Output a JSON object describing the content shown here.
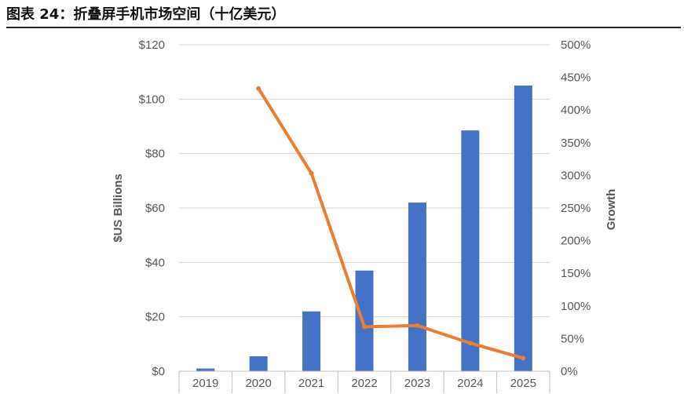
{
  "figure": {
    "title": "图表 24：折叠屏手机市场空间（十亿美元）"
  },
  "chart_data": {
    "type": "bar",
    "categories": [
      "2019",
      "2020",
      "2021",
      "2022",
      "2023",
      "2024",
      "2025"
    ],
    "series": [
      {
        "name": "",
        "type": "bar",
        "axis": "left",
        "values": [
          1,
          5.5,
          22,
          37,
          62,
          88.5,
          105
        ],
        "color": "#4472C4"
      },
      {
        "name": "",
        "type": "line",
        "axis": "right",
        "values": [
          null,
          433,
          303,
          68,
          70,
          43,
          20
        ],
        "color": "#ED7D31"
      }
    ],
    "ylabel": "$US Billions",
    "y2label": "Growth",
    "ylim": [
      0,
      120
    ],
    "y2lim": [
      0,
      500
    ],
    "yticks": [
      0,
      20,
      40,
      60,
      80,
      100,
      120
    ],
    "yticklabels": [
      "$0",
      "$20",
      "$40",
      "$60",
      "$80",
      "$100",
      "$120"
    ],
    "y2ticks": [
      0,
      50,
      100,
      150,
      200,
      250,
      300,
      350,
      400,
      450,
      500
    ],
    "y2ticklabels": [
      "0%",
      "50%",
      "100%",
      "150%",
      "200%",
      "250%",
      "300%",
      "350%",
      "400%",
      "450%",
      "500%"
    ],
    "grid": true,
    "legend": "none"
  }
}
